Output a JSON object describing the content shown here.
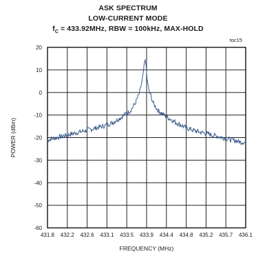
{
  "chart_data": {
    "type": "line",
    "title_line1": "ASK SPECTRUM",
    "title_line2": "LOW-CURRENT  MODE",
    "title_line3": "fC = 433.92MHz,  RBW = 100kHz,  MAX-HOLD",
    "corner_code": "toc15",
    "xlabel": "FREQUENCY (MHz)",
    "ylabel": "POWER  (dBm)",
    "xlim": [
      431.8,
      436.1
    ],
    "ylim": [
      -60,
      20
    ],
    "x_ticks": [
      "431.8",
      "432.2",
      "432.6",
      "433.1",
      "433.5",
      "433.9",
      "434.4",
      "434.8",
      "435.2",
      "435.7",
      "436.1"
    ],
    "y_ticks": [
      "20",
      "10",
      "0",
      "-10",
      "-20",
      "-30",
      "-40",
      "-50",
      "-60"
    ],
    "grid": true,
    "series": [
      {
        "color": "#3b5b8c",
        "x": [
          431.8,
          432.0,
          432.2,
          432.4,
          432.6,
          432.8,
          433.0,
          433.2,
          433.4,
          433.6,
          433.7,
          433.8,
          433.85,
          433.88,
          433.9,
          433.92,
          433.94,
          433.96,
          434.0,
          434.05,
          434.1,
          434.2,
          434.4,
          434.6,
          434.8,
          435.0,
          435.2,
          435.4,
          435.6,
          435.8,
          436.0,
          436.1
        ],
        "y": [
          -21,
          -20,
          -19,
          -18,
          -17,
          -16,
          -15,
          -13.5,
          -11,
          -8,
          -5,
          0,
          5,
          9,
          13,
          14.5,
          12,
          6,
          1,
          -2,
          -5,
          -8,
          -11,
          -13.5,
          -15.5,
          -17,
          -18,
          -19,
          -20,
          -21,
          -22,
          -22
        ]
      }
    ]
  }
}
